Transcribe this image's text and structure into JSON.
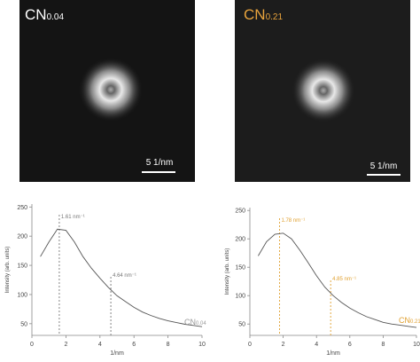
{
  "images": [
    {
      "label": {
        "main": "CN",
        "sub": "0.04"
      },
      "scale_bar": "5 1/nm"
    },
    {
      "label": {
        "main": "CN",
        "sub": "0.21"
      },
      "scale_bar": "5 1/nm"
    }
  ],
  "chart_data": [
    {
      "type": "line",
      "xlabel": "1/nm",
      "ylabel": "Intensity (arb. units)",
      "x": [
        0.5,
        1,
        1.5,
        2,
        2.5,
        3,
        3.5,
        4,
        4.5,
        5,
        5.5,
        6,
        6.5,
        7,
        7.5,
        8,
        8.5,
        9,
        9.5,
        10
      ],
      "series": [
        {
          "name": {
            "main": "CN",
            "sub": "0.04"
          },
          "color": "#555555",
          "values": [
            165,
            190,
            212,
            210,
            190,
            165,
            145,
            128,
            112,
            98,
            88,
            78,
            70,
            64,
            59,
            55,
            52,
            49,
            47,
            45
          ]
        }
      ],
      "markers": [
        {
          "x": 1.61,
          "label": "1.61 nm⁻¹"
        },
        {
          "x": 4.64,
          "label": "4.64 nm⁻¹"
        }
      ],
      "marker_color": "#777777",
      "xlim": [
        0,
        10
      ],
      "xticks": [
        0,
        2,
        4,
        6,
        8,
        10
      ],
      "ylim": [
        30,
        255
      ],
      "yticks": [
        50,
        100,
        150,
        200,
        250
      ]
    },
    {
      "type": "line",
      "xlabel": "1/nm",
      "ylabel": "Intensity (arb. units)",
      "x": [
        0.5,
        1,
        1.5,
        2,
        2.5,
        3,
        3.5,
        4,
        4.5,
        5,
        5.5,
        6,
        6.5,
        7,
        7.5,
        8,
        8.5,
        9,
        9.5,
        10
      ],
      "series": [
        {
          "name": {
            "main": "CN",
            "sub": "0.21"
          },
          "color": "#555555",
          "values": [
            170,
            195,
            208,
            210,
            200,
            180,
            158,
            135,
            115,
            100,
            88,
            78,
            70,
            63,
            58,
            53,
            50,
            48,
            46,
            44
          ]
        }
      ],
      "markers": [
        {
          "x": 1.78,
          "label": "1.78 nm⁻¹"
        },
        {
          "x": 4.85,
          "label": "4.85 nm⁻¹"
        }
      ],
      "marker_color": "#e0a030",
      "xlim": [
        0,
        10
      ],
      "xticks": [
        0,
        2,
        4,
        6,
        8,
        10
      ],
      "ylim": [
        30,
        255
      ],
      "yticks": [
        50,
        100,
        150,
        200,
        250
      ]
    }
  ]
}
